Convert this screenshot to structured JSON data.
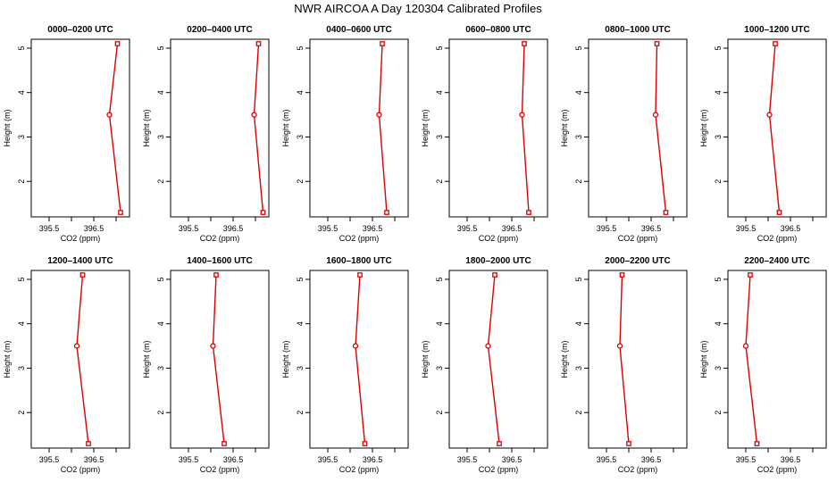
{
  "figure": {
    "title": "NWR AIRCOA A  Day 120304  Calibrated Profiles"
  },
  "colors": {
    "series": "#dd0000",
    "axes": "#000000",
    "background": "#ffffff"
  },
  "chart_data": [
    {
      "type": "line",
      "title": "0000–0200 UTC",
      "xlabel": "CO2 (ppm)",
      "ylabel": "Height (m)",
      "xlim": [
        395.1,
        397.3
      ],
      "ylim": [
        1.2,
        5.2
      ],
      "x_ticks": [
        "395.5",
        "396.5"
      ],
      "x_tick_values": [
        395.5,
        396.5
      ],
      "y_ticks": [
        "2",
        "3",
        "4",
        "5"
      ],
      "y_tick_values": [
        2,
        3,
        4,
        5
      ],
      "x": [
        397.03,
        396.85,
        397.1
      ],
      "y": [
        5.1,
        3.5,
        1.3
      ],
      "markers": [
        "square",
        "circle",
        "square"
      ]
    },
    {
      "type": "line",
      "title": "0200–0400 UTC",
      "xlabel": "CO2 (ppm)",
      "ylabel": "Height (m)",
      "xlim": [
        395.1,
        397.3
      ],
      "ylim": [
        1.2,
        5.2
      ],
      "x_ticks": [
        "395.5",
        "396.5"
      ],
      "x_tick_values": [
        395.5,
        396.5
      ],
      "y_ticks": [
        "2",
        "3",
        "4",
        "5"
      ],
      "y_tick_values": [
        2,
        3,
        4,
        5
      ],
      "x": [
        397.07,
        396.97,
        397.17
      ],
      "y": [
        5.1,
        3.5,
        1.3
      ],
      "markers": [
        "square",
        "circle",
        "square"
      ]
    },
    {
      "type": "line",
      "title": "0400–0600 UTC",
      "xlabel": "CO2 (ppm)",
      "ylabel": "Height (m)",
      "xlim": [
        395.1,
        397.3
      ],
      "ylim": [
        1.2,
        5.2
      ],
      "x_ticks": [
        "395.5",
        "396.5"
      ],
      "x_tick_values": [
        395.5,
        396.5
      ],
      "y_ticks": [
        "2",
        "3",
        "4",
        "5"
      ],
      "y_tick_values": [
        2,
        3,
        4,
        5
      ],
      "x": [
        396.72,
        396.65,
        396.82
      ],
      "y": [
        5.1,
        3.5,
        1.3
      ],
      "markers": [
        "square",
        "circle",
        "square"
      ]
    },
    {
      "type": "line",
      "title": "0600–0800 UTC",
      "xlabel": "CO2 (ppm)",
      "ylabel": "Height (m)",
      "xlim": [
        395.1,
        397.3
      ],
      "ylim": [
        1.2,
        5.2
      ],
      "x_ticks": [
        "395.5",
        "396.5"
      ],
      "x_tick_values": [
        395.5,
        396.5
      ],
      "y_ticks": [
        "2",
        "3",
        "4",
        "5"
      ],
      "y_tick_values": [
        2,
        3,
        4,
        5
      ],
      "x": [
        396.78,
        396.73,
        396.88
      ],
      "y": [
        5.1,
        3.5,
        1.3
      ],
      "markers": [
        "square",
        "circle",
        "square"
      ]
    },
    {
      "type": "line",
      "title": "0800–1000 UTC",
      "xlabel": "CO2 (ppm)",
      "ylabel": "Height (m)",
      "xlim": [
        395.1,
        397.3
      ],
      "ylim": [
        1.2,
        5.2
      ],
      "x_ticks": [
        "395.5",
        "396.5"
      ],
      "x_tick_values": [
        395.5,
        396.5
      ],
      "y_ticks": [
        "2",
        "3",
        "4",
        "5"
      ],
      "y_tick_values": [
        2,
        3,
        4,
        5
      ],
      "x": [
        396.63,
        396.6,
        396.83
      ],
      "y": [
        5.1,
        3.5,
        1.3
      ],
      "markers": [
        "square",
        "circle",
        "square"
      ]
    },
    {
      "type": "line",
      "title": "1000–1200 UTC",
      "xlabel": "CO2 (ppm)",
      "ylabel": "Height (m)",
      "xlim": [
        395.1,
        397.3
      ],
      "ylim": [
        1.2,
        5.2
      ],
      "x_ticks": [
        "395.5",
        "396.5"
      ],
      "x_tick_values": [
        395.5,
        396.5
      ],
      "y_ticks": [
        "2",
        "3",
        "4",
        "5"
      ],
      "y_tick_values": [
        2,
        3,
        4,
        5
      ],
      "x": [
        396.16,
        396.03,
        396.25
      ],
      "y": [
        5.1,
        3.5,
        1.3
      ],
      "markers": [
        "square",
        "circle",
        "square"
      ]
    },
    {
      "type": "line",
      "title": "1200–1400 UTC",
      "xlabel": "CO2 (ppm)",
      "ylabel": "Height (m)",
      "xlim": [
        395.1,
        397.3
      ],
      "ylim": [
        1.2,
        5.2
      ],
      "x_ticks": [
        "395.5",
        "396.5"
      ],
      "x_tick_values": [
        395.5,
        396.5
      ],
      "y_ticks": [
        "2",
        "3",
        "4",
        "5"
      ],
      "y_tick_values": [
        2,
        3,
        4,
        5
      ],
      "x": [
        396.25,
        396.12,
        396.38
      ],
      "y": [
        5.1,
        3.5,
        1.3
      ],
      "markers": [
        "square",
        "circle",
        "square"
      ]
    },
    {
      "type": "line",
      "title": "1400–1600 UTC",
      "xlabel": "CO2 (ppm)",
      "ylabel": "Height (m)",
      "xlim": [
        395.1,
        397.3
      ],
      "ylim": [
        1.2,
        5.2
      ],
      "x_ticks": [
        "395.5",
        "396.5"
      ],
      "x_tick_values": [
        395.5,
        396.5
      ],
      "y_ticks": [
        "2",
        "3",
        "4",
        "5"
      ],
      "y_tick_values": [
        2,
        3,
        4,
        5
      ],
      "x": [
        396.12,
        396.05,
        396.3
      ],
      "y": [
        5.1,
        3.5,
        1.3
      ],
      "markers": [
        "square",
        "circle",
        "square"
      ]
    },
    {
      "type": "line",
      "title": "1600–1800 UTC",
      "xlabel": "CO2 (ppm)",
      "ylabel": "Height (m)",
      "xlim": [
        395.1,
        397.3
      ],
      "ylim": [
        1.2,
        5.2
      ],
      "x_ticks": [
        "395.5",
        "396.5"
      ],
      "x_tick_values": [
        395.5,
        396.5
      ],
      "y_ticks": [
        "2",
        "3",
        "4",
        "5"
      ],
      "y_tick_values": [
        2,
        3,
        4,
        5
      ],
      "x": [
        396.22,
        396.12,
        396.33
      ],
      "y": [
        5.1,
        3.5,
        1.3
      ],
      "markers": [
        "square",
        "circle",
        "square"
      ]
    },
    {
      "type": "line",
      "title": "1800–2000 UTC",
      "xlabel": "CO2 (ppm)",
      "ylabel": "Height (m)",
      "xlim": [
        395.1,
        397.3
      ],
      "ylim": [
        1.2,
        5.2
      ],
      "x_ticks": [
        "395.5",
        "396.5"
      ],
      "x_tick_values": [
        395.5,
        396.5
      ],
      "y_ticks": [
        "2",
        "3",
        "4",
        "5"
      ],
      "y_tick_values": [
        2,
        3,
        4,
        5
      ],
      "x": [
        396.12,
        395.97,
        396.22
      ],
      "y": [
        5.1,
        3.5,
        1.3
      ],
      "markers": [
        "square",
        "circle",
        "square"
      ]
    },
    {
      "type": "line",
      "title": "2000–2200 UTC",
      "xlabel": "CO2 (ppm)",
      "ylabel": "Height (m)",
      "xlim": [
        395.1,
        397.3
      ],
      "ylim": [
        1.2,
        5.2
      ],
      "x_ticks": [
        "395.5",
        "396.5"
      ],
      "x_tick_values": [
        395.5,
        396.5
      ],
      "y_ticks": [
        "2",
        "3",
        "4",
        "5"
      ],
      "y_tick_values": [
        2,
        3,
        4,
        5
      ],
      "x": [
        395.85,
        395.8,
        396.0
      ],
      "y": [
        5.1,
        3.5,
        1.3
      ],
      "markers": [
        "square",
        "circle",
        "square"
      ]
    },
    {
      "type": "line",
      "title": "2200–2400 UTC",
      "xlabel": "CO2 (ppm)",
      "ylabel": "Height (m)",
      "xlim": [
        395.1,
        397.3
      ],
      "ylim": [
        1.2,
        5.2
      ],
      "x_ticks": [
        "395.5",
        "396.5"
      ],
      "x_tick_values": [
        395.5,
        396.5
      ],
      "y_ticks": [
        "2",
        "3",
        "4",
        "5"
      ],
      "y_tick_values": [
        2,
        3,
        4,
        5
      ],
      "x": [
        395.6,
        395.5,
        395.75
      ],
      "y": [
        5.1,
        3.5,
        1.3
      ],
      "markers": [
        "square",
        "circle",
        "square"
      ]
    }
  ]
}
